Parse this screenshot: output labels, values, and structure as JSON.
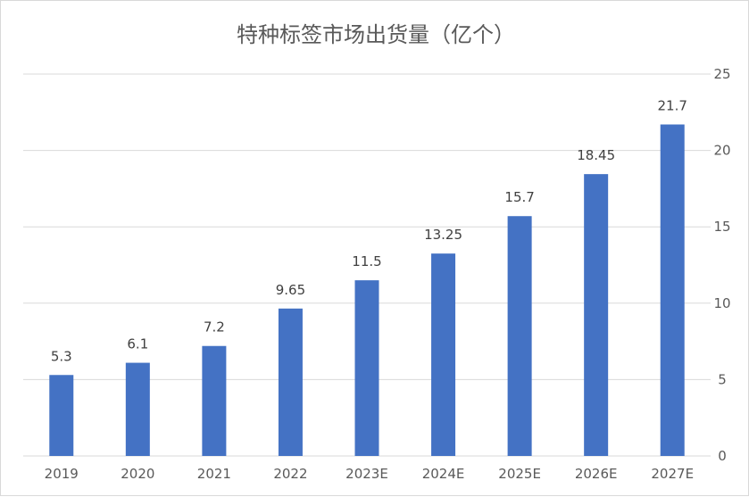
{
  "chart_data": {
    "type": "bar",
    "title": "特种标签市场出货量（亿个）",
    "categories": [
      "2019",
      "2020",
      "2021",
      "2022",
      "2023E",
      "2024E",
      "2025E",
      "2026E",
      "2027E"
    ],
    "values": [
      5.3,
      6.1,
      7.2,
      9.65,
      11.5,
      13.25,
      15.7,
      18.45,
      21.7
    ],
    "data_labels": [
      "5.3",
      "6.1",
      "7.2",
      "9.65",
      "11.5",
      "13.25",
      "15.7",
      "18.45",
      "21.7"
    ],
    "yaxis_position": "right",
    "ylim": [
      0,
      25
    ],
    "yticks": [
      0,
      5,
      10,
      15,
      20,
      25
    ],
    "grid": true,
    "bar_color": "#4472C4",
    "grid_color": "#D9D9D9"
  }
}
